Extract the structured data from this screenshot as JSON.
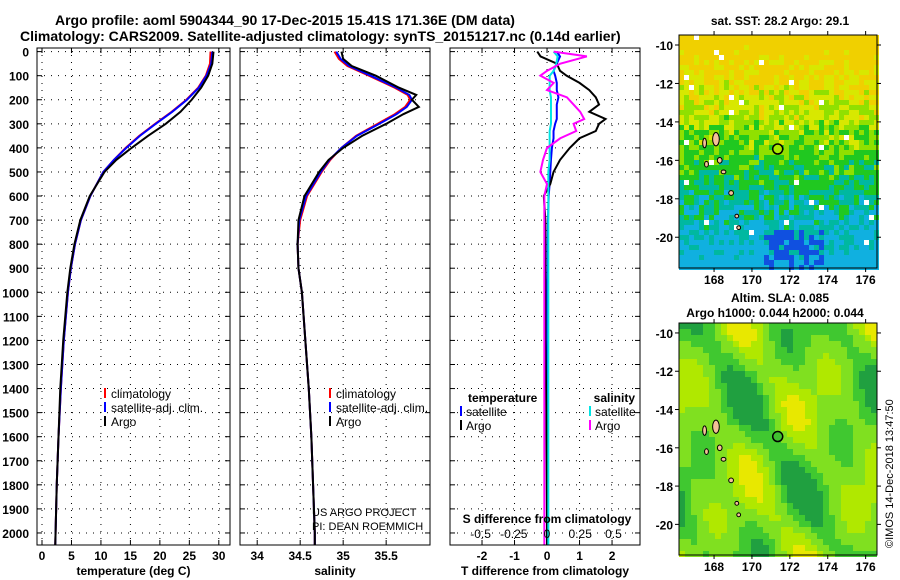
{
  "title_line1": "Argo profile: aoml 5904344_90 17-Dec-2015 15.41S 171.36E (DM data)",
  "title_line2": "Climatology: CARS2009. Satellite-adjusted climatology: synTS_20151217.nc (0.14d earlier)",
  "credit": "US ARGO PROJECT",
  "pi": "PI: DEAN ROEMMICH",
  "copyright": "©IMOS 14-Dec-2018 13:47:50",
  "colors": {
    "climatology": "#ff0000",
    "satellite": "#0000ff",
    "argo": "#000000",
    "sal_satellite": "#00e5e5",
    "sal_argo": "#ff00ff"
  },
  "chart_data": [
    {
      "type": "line",
      "id": "temperature",
      "xlabel": "temperature (deg C)",
      "ylabel": "",
      "xlim": [
        -0.85,
        31.9
      ],
      "ylim": [
        2050,
        -15
      ],
      "xticks": [
        0,
        5,
        10,
        15,
        20,
        25,
        30
      ],
      "yticks": [
        0,
        100,
        200,
        300,
        400,
        500,
        600,
        700,
        800,
        900,
        1000,
        1100,
        1200,
        1300,
        1400,
        1500,
        1600,
        1700,
        1800,
        1900,
        2000
      ],
      "depth": [
        0,
        50,
        100,
        150,
        200,
        250,
        300,
        350,
        400,
        450,
        500,
        600,
        700,
        800,
        900,
        1000,
        1200,
        1400,
        1600,
        1800,
        2000,
        2050
      ],
      "series": [
        {
          "name": "climatology",
          "color": "#ff0000",
          "values": [
            28.6,
            28.5,
            27.8,
            26.5,
            24.5,
            22.0,
            19.2,
            16.5,
            14.2,
            12.2,
            10.4,
            8.2,
            6.6,
            5.6,
            4.9,
            4.4,
            3.7,
            3.2,
            2.8,
            2.5,
            2.3,
            2.25
          ]
        },
        {
          "name": "satellite-adj. clim.",
          "color": "#0000ff",
          "values": [
            28.9,
            28.7,
            27.9,
            26.6,
            24.6,
            22.1,
            19.3,
            16.6,
            14.3,
            12.2,
            10.4,
            8.2,
            6.6,
            5.6,
            4.9,
            4.4,
            3.7,
            3.2,
            2.8,
            2.5,
            2.3,
            2.25
          ]
        },
        {
          "name": "Argo",
          "color": "#000000",
          "values": [
            29.1,
            28.9,
            28.2,
            27.0,
            25.4,
            23.5,
            21.0,
            18.0,
            15.2,
            12.6,
            10.6,
            8.1,
            6.5,
            5.5,
            4.8,
            4.3,
            3.6,
            3.1,
            2.8,
            2.5,
            2.3,
            2.25
          ]
        }
      ]
    },
    {
      "type": "line",
      "id": "salinity",
      "xlabel": "salinity",
      "xlim": [
        33.8,
        36.01
      ],
      "ylim": [
        2050,
        -15
      ],
      "xticks": [
        34,
        34.5,
        35,
        35.5
      ],
      "depth": [
        0,
        30,
        60,
        100,
        150,
        180,
        200,
        230,
        260,
        300,
        350,
        400,
        450,
        500,
        600,
        700,
        800,
        900,
        1000,
        1200,
        1400,
        1600,
        1800,
        2000,
        2050
      ],
      "series": [
        {
          "name": "climatology",
          "color": "#ff0000",
          "values": [
            34.9,
            34.95,
            35.05,
            35.3,
            35.6,
            35.75,
            35.78,
            35.72,
            35.6,
            35.4,
            35.15,
            34.98,
            34.85,
            34.75,
            34.58,
            34.5,
            34.47,
            34.48,
            34.52,
            34.56,
            34.6,
            34.63,
            34.65,
            34.67,
            34.67
          ]
        },
        {
          "name": "satellite-adj. clim.",
          "color": "#0000ff",
          "values": [
            34.92,
            34.97,
            35.07,
            35.32,
            35.62,
            35.77,
            35.8,
            35.74,
            35.62,
            35.42,
            35.16,
            34.98,
            34.84,
            34.74,
            34.57,
            34.49,
            34.47,
            34.48,
            34.52,
            34.56,
            34.6,
            34.63,
            34.65,
            34.67,
            34.67
          ]
        },
        {
          "name": "Argo",
          "color": "#000000",
          "values": [
            34.98,
            35.0,
            35.1,
            35.38,
            35.65,
            35.85,
            35.8,
            35.88,
            35.7,
            35.5,
            35.22,
            35.0,
            34.83,
            34.72,
            34.55,
            34.48,
            34.47,
            34.48,
            34.52,
            34.56,
            34.6,
            34.63,
            34.65,
            34.67,
            34.67
          ]
        }
      ]
    },
    {
      "type": "line",
      "id": "difference",
      "xlabel": "T difference from climatology",
      "x2label": "S difference from climatology",
      "xlim": [
        -2.985,
        2.86
      ],
      "x2lim": [
        -0.73,
        0.7
      ],
      "ylim": [
        2050,
        -15
      ],
      "xticks": [
        -2,
        -1,
        0,
        1,
        2
      ],
      "x2ticks": [
        -0.5,
        -0.25,
        0,
        0.25,
        0.5
      ],
      "x2ticklabels": [
        "-0.5",
        "-0.25",
        "0",
        "0.25",
        "0.5"
      ],
      "legend_temperature_title": "temperature",
      "legend_salinity_title": "salinity",
      "depth": [
        0,
        20,
        50,
        80,
        100,
        130,
        160,
        190,
        220,
        250,
        280,
        300,
        330,
        360,
        400,
        450,
        500,
        550,
        600,
        700,
        800,
        900,
        1000,
        1200,
        1500,
        2000,
        2050
      ],
      "series": [
        {
          "name": "satellite",
          "group": "temperature",
          "axis": "T",
          "color": "#0000ff",
          "values": [
            0.3,
            0.4,
            0.3,
            0.2,
            0.25,
            0.3,
            0.3,
            0.35,
            0.3,
            0.3,
            0.3,
            0.25,
            0.2,
            0.2,
            0.15,
            0.12,
            0.1,
            0.08,
            0.05,
            0.03,
            0.02,
            0.02,
            0.01,
            0.01,
            0.0,
            0.0,
            0.0
          ]
        },
        {
          "name": "Argo",
          "group": "temperature",
          "axis": "T",
          "color": "#000000",
          "values": [
            -0.3,
            -0.2,
            0.3,
            0.4,
            0.6,
            1.0,
            1.3,
            1.5,
            1.6,
            1.3,
            1.8,
            1.6,
            1.5,
            1.0,
            0.7,
            0.4,
            0.2,
            0.1,
            -0.1,
            -0.05,
            -0.05,
            -0.05,
            -0.05,
            -0.05,
            -0.02,
            0.0,
            0.0
          ]
        },
        {
          "name": "satellite",
          "group": "salinity",
          "axis": "S",
          "color": "#00e5e5",
          "values": [
            0.05,
            0.08,
            0.07,
            0.05,
            0.02,
            0.02,
            0.02,
            0.03,
            0.03,
            0.03,
            0.03,
            0.03,
            0.02,
            0.02,
            0.02,
            0.02,
            0.01,
            0.01,
            0.01,
            0.01,
            0.01,
            0.01,
            0.01,
            0.01,
            0.01,
            0.01,
            0.01
          ]
        },
        {
          "name": "Argo",
          "group": "salinity",
          "axis": "S",
          "color": "#ff00ff",
          "values": [
            0.05,
            0.3,
            0.1,
            0.0,
            -0.05,
            0.05,
            0.0,
            0.15,
            0.2,
            0.25,
            0.28,
            0.2,
            0.22,
            0.1,
            0.0,
            -0.03,
            -0.05,
            0.0,
            -0.02,
            -0.02,
            -0.02,
            -0.02,
            -0.02,
            -0.02,
            -0.02,
            -0.02,
            -0.02
          ]
        }
      ]
    },
    {
      "type": "heatmap",
      "id": "sst_map",
      "title": "sat. SST: 28.2 Argo: 29.1",
      "xlim": [
        166.15,
        176.6
      ],
      "ylim": [
        -21.6,
        -9.48
      ],
      "xticks": [
        168,
        170,
        172,
        174,
        176
      ],
      "yticks": [
        -10,
        -12,
        -14,
        -16,
        -18,
        -20
      ],
      "argo_position": [
        171.36,
        -15.41
      ]
    },
    {
      "type": "heatmap",
      "id": "sla_map",
      "title": "Altim. SLA: 0.085",
      "subtitle": "Argo h1000: 0.044 h2000: 0.044",
      "xlim": [
        166.15,
        176.6
      ],
      "ylim": [
        -21.6,
        -9.48
      ],
      "xticks": [
        168,
        170,
        172,
        174,
        176
      ],
      "yticks": [
        -10,
        -12,
        -14,
        -16,
        -18,
        -20
      ],
      "argo_position": [
        171.36,
        -15.41
      ]
    }
  ]
}
